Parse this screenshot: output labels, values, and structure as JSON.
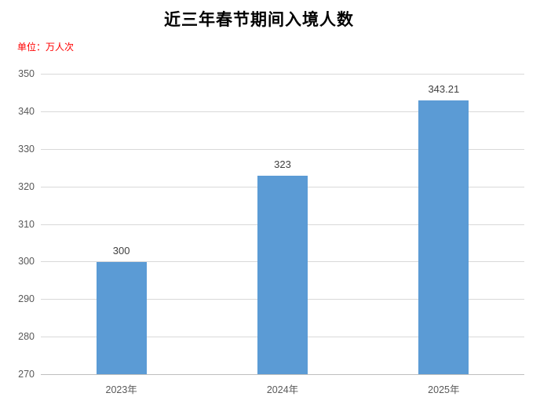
{
  "title": "近三年春节期间入境人数",
  "unit_label": "单位：万人次",
  "colors": {
    "background": "#FFFFFF",
    "title_text": "#000000",
    "unit_text": "#FF0000",
    "bar": "#5B9BD5",
    "grid": "#D9D9D9",
    "axis_line": "#BFBFBF",
    "tick_text": "#595959",
    "value_label_text": "#404040"
  },
  "chart_data": {
    "type": "bar",
    "title": "近三年春节期间入境人数",
    "xlabel": "",
    "ylabel": "单位：万人次",
    "categories": [
      "2023年",
      "2024年",
      "2025年"
    ],
    "values": [
      300,
      323,
      343.21
    ],
    "data_labels": [
      "300",
      "323",
      "343.21"
    ],
    "ylim": [
      270,
      350
    ],
    "yticks": [
      270,
      280,
      290,
      300,
      310,
      320,
      330,
      340,
      350
    ],
    "grid": true,
    "legend": false
  }
}
